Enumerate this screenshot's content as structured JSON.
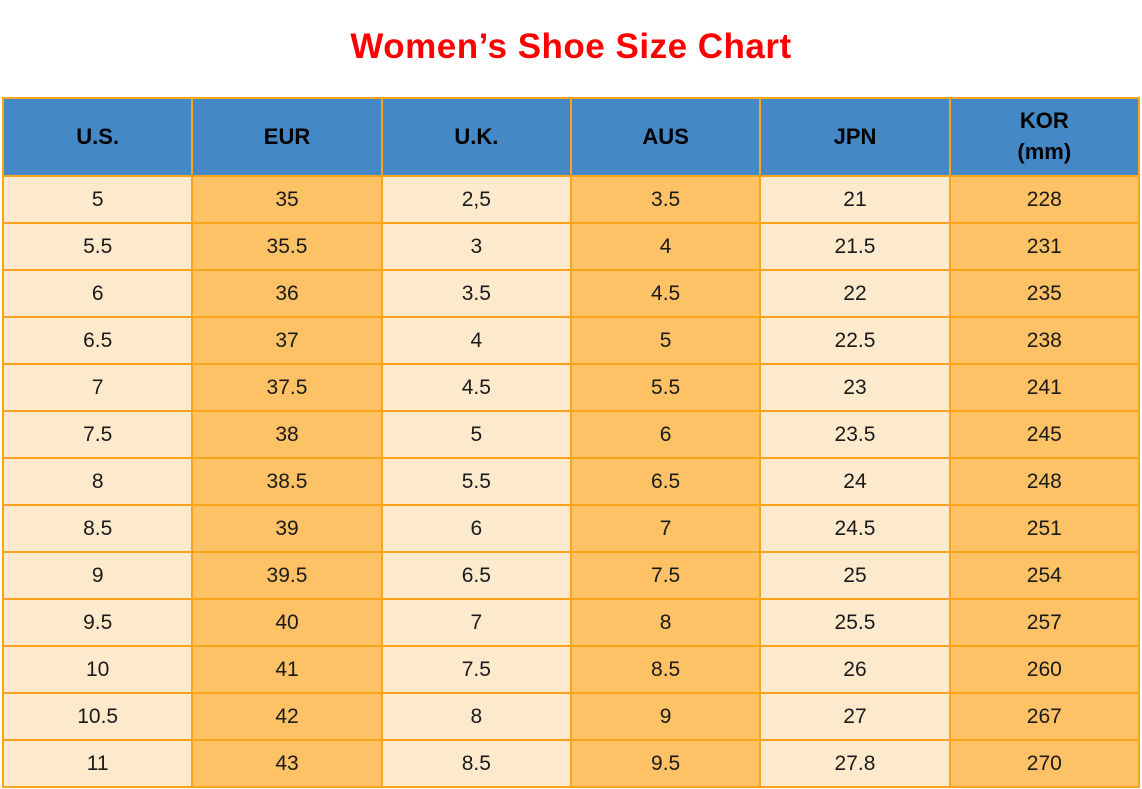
{
  "title": "Women’s Shoe Size Chart",
  "colors": {
    "title_text": "#ff0000",
    "header_bg": "#4588c6",
    "grid_border": "#faa41c",
    "cell_light": "#fdeacd",
    "cell_orange": "#fdc166",
    "cell_text": "#1a1a1a"
  },
  "header": {
    "cols": [
      {
        "line1": "U.S.",
        "line2": ""
      },
      {
        "line1": "EUR",
        "line2": ""
      },
      {
        "line1": "U.K.",
        "line2": ""
      },
      {
        "line1": "AUS",
        "line2": ""
      },
      {
        "line1": "JPN",
        "line2": ""
      },
      {
        "line1": "KOR",
        "line2": "(mm)"
      }
    ]
  },
  "rows": [
    [
      "5",
      "35",
      "2,5",
      "3.5",
      "21",
      "228"
    ],
    [
      "5.5",
      "35.5",
      "3",
      "4",
      "21.5",
      "231"
    ],
    [
      "6",
      "36",
      "3.5",
      "4.5",
      "22",
      "235"
    ],
    [
      "6.5",
      "37",
      "4",
      "5",
      "22.5",
      "238"
    ],
    [
      "7",
      "37.5",
      "4.5",
      "5.5",
      "23",
      "241"
    ],
    [
      "7.5",
      "38",
      "5",
      "6",
      "23.5",
      "245"
    ],
    [
      "8",
      "38.5",
      "5.5",
      "6.5",
      "24",
      "248"
    ],
    [
      "8.5",
      "39",
      "6",
      "7",
      "24.5",
      "251"
    ],
    [
      "9",
      "39.5",
      "6.5",
      "7.5",
      "25",
      "254"
    ],
    [
      "9.5",
      "40",
      "7",
      "8",
      "25.5",
      "257"
    ],
    [
      "10",
      "41",
      "7.5",
      "8.5",
      "26",
      "260"
    ],
    [
      "10.5",
      "42",
      "8",
      "9",
      "27",
      "267"
    ],
    [
      "11",
      "43",
      "8.5",
      "9.5",
      "27.8",
      "270"
    ]
  ],
  "chart_data": {
    "type": "table",
    "title": "Women’s Shoe Size Chart",
    "columns": [
      "U.S.",
      "EUR",
      "U.K.",
      "AUS",
      "JPN",
      "KOR (mm)"
    ],
    "rows": [
      [
        "5",
        "35",
        "2,5",
        "3.5",
        "21",
        "228"
      ],
      [
        "5.5",
        "35.5",
        "3",
        "4",
        "21.5",
        "231"
      ],
      [
        "6",
        "36",
        "3.5",
        "4.5",
        "22",
        "235"
      ],
      [
        "6.5",
        "37",
        "4",
        "5",
        "22.5",
        "238"
      ],
      [
        "7",
        "37.5",
        "4.5",
        "5.5",
        "23",
        "241"
      ],
      [
        "7.5",
        "38",
        "5",
        "6",
        "23.5",
        "245"
      ],
      [
        "8",
        "38.5",
        "5.5",
        "6.5",
        "24",
        "248"
      ],
      [
        "8.5",
        "39",
        "6",
        "7",
        "24.5",
        "251"
      ],
      [
        "9",
        "39.5",
        "6.5",
        "7.5",
        "25",
        "254"
      ],
      [
        "9.5",
        "40",
        "7",
        "8",
        "25.5",
        "257"
      ],
      [
        "10",
        "41",
        "7.5",
        "8.5",
        "26",
        "260"
      ],
      [
        "10.5",
        "42",
        "8",
        "9",
        "27",
        "267"
      ],
      [
        "11",
        "43",
        "8.5",
        "9.5",
        "27.8",
        "270"
      ]
    ],
    "layout": {
      "header_style": "blue band, bold black text",
      "column_fill_pattern": "odd columns cream, even columns orange",
      "grid": true
    }
  }
}
